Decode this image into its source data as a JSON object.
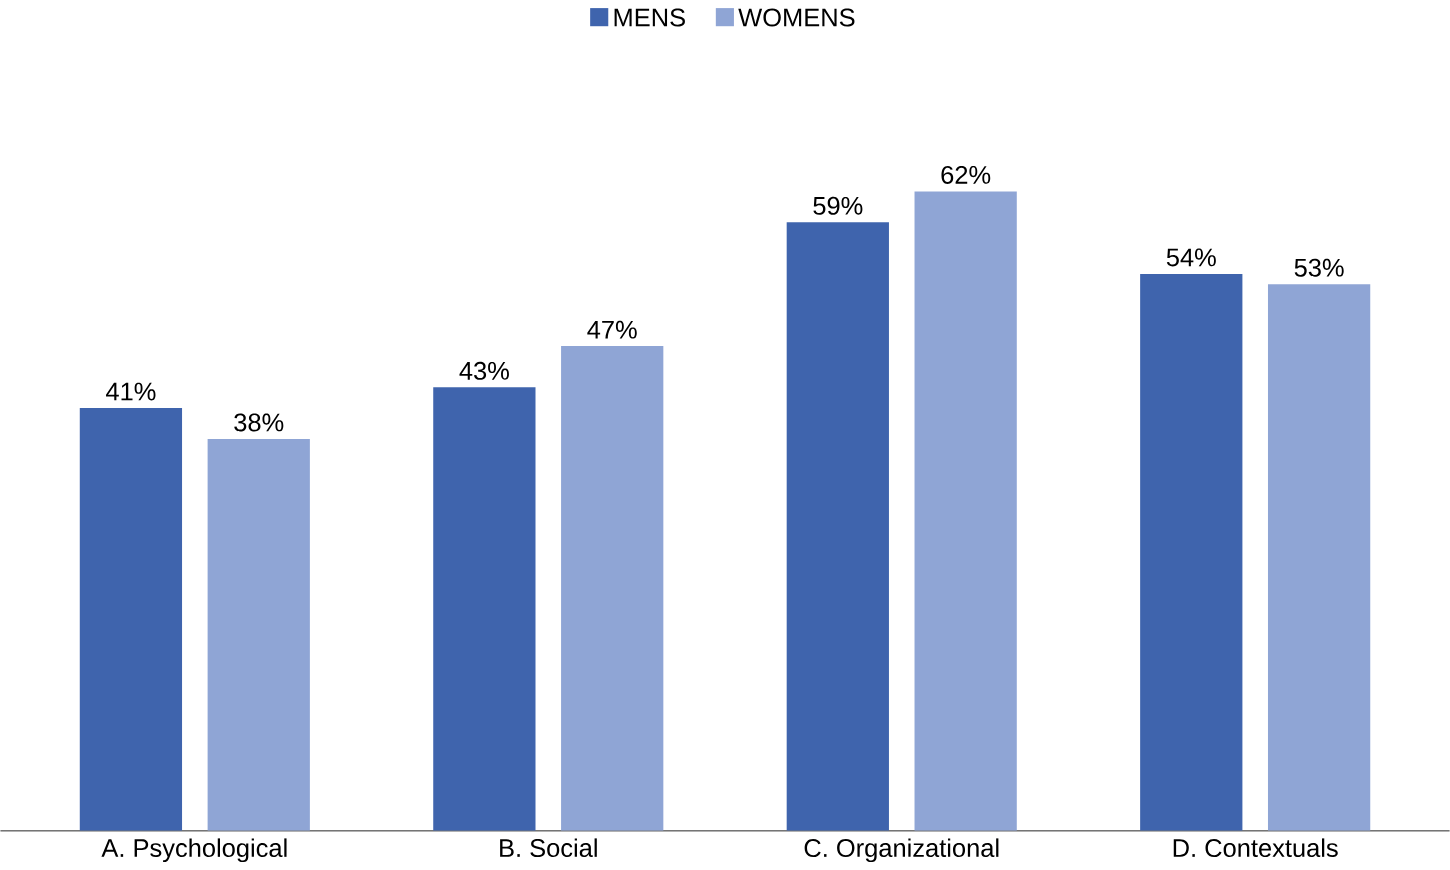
{
  "chart_data": {
    "type": "bar",
    "categories": [
      "A.   Psychological",
      "B.   Social",
      "C.   Organizational",
      "D.   Contextuals"
    ],
    "series": [
      {
        "name": "MENS",
        "color": "#3f64ad",
        "values": [
          41,
          43,
          59,
          54
        ],
        "value_labels": [
          "41%",
          "43%",
          "59%",
          "54%"
        ]
      },
      {
        "name": "WOMENS",
        "color": "#8fa5d5",
        "values": [
          38,
          47,
          62,
          53
        ],
        "value_labels": [
          "38%",
          "47%",
          "62%",
          "53%"
        ]
      }
    ],
    "tick_labels": "x",
    "legend": "top"
  }
}
